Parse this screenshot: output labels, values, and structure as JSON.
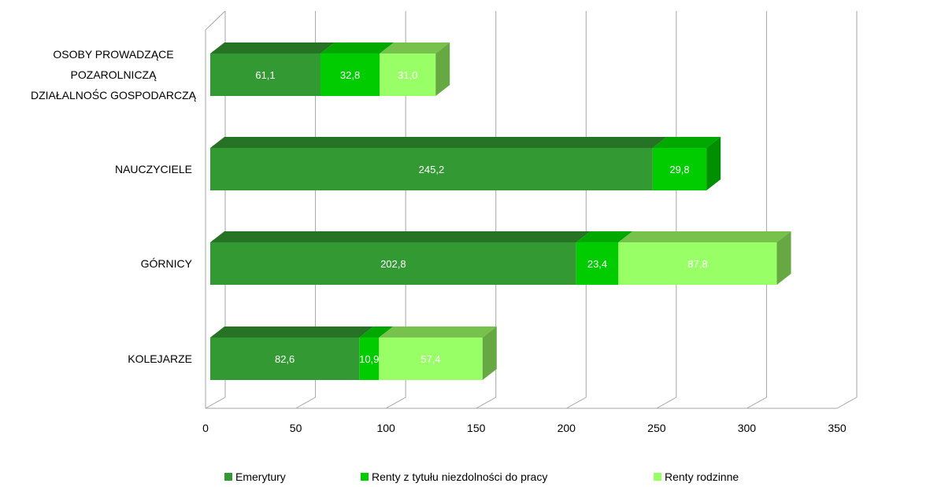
{
  "chart_data": {
    "type": "bar",
    "orientation": "horizontal",
    "stacked": true,
    "style": "3d",
    "categories": [
      [
        "OSOBY PROWADZĄCE",
        "POZAROLNICZĄ",
        "DZIAŁALNOŚC GOSPODARCZĄ"
      ],
      [
        "NAUCZYCIELE"
      ],
      [
        "GÓRNICY"
      ],
      [
        "KOLEJARZE"
      ]
    ],
    "series": [
      {
        "name": "Emerytury",
        "values": [
          61.1,
          245.2,
          202.8,
          82.6
        ],
        "labels": [
          "61,1",
          "245,2",
          "202,8",
          "82,6"
        ],
        "color": "#339933",
        "top_color": "#267326",
        "side_color": "#2d862d"
      },
      {
        "name": "Renty z tytułu niezdolności do pracy",
        "values": [
          32.8,
          29.8,
          23.4,
          10.9
        ],
        "labels": [
          "32,8",
          "29,8",
          "23,4",
          "10,9"
        ],
        "color": "#00cc00",
        "top_color": "#00a800",
        "side_color": "#008f00"
      },
      {
        "name": "Renty rodzinne",
        "values": [
          31.0,
          0,
          87.8,
          57.4
        ],
        "labels": [
          "31,0",
          "",
          "87,8",
          "57,4"
        ],
        "color": "#99ff66",
        "top_color": "#77c24d",
        "side_color": "#66a842"
      }
    ],
    "x_ticks": [
      "0",
      "50",
      "100",
      "150",
      "200",
      "250",
      "300",
      "350"
    ],
    "xlim": [
      0,
      350
    ],
    "xlabel": "",
    "ylabel": "",
    "title": "",
    "grid": true,
    "legend_position": "bottom",
    "grid_color": "#a6a6a6",
    "label_color": "#ffffff"
  }
}
